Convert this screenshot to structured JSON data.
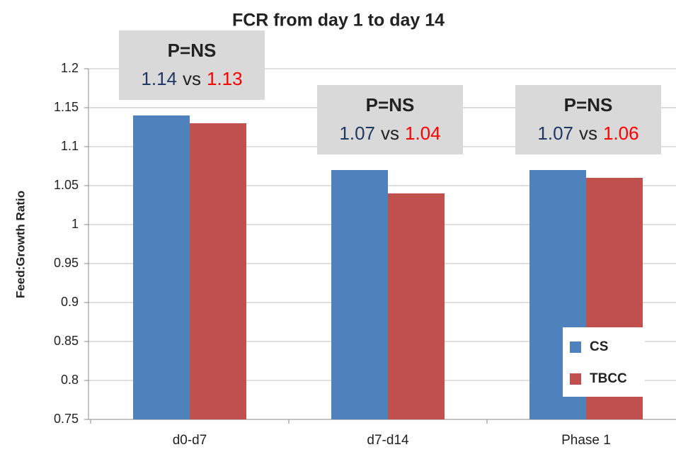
{
  "chart_data": {
    "type": "bar",
    "title": "FCR from day 1 to day 14",
    "y_label": "Feed:Growth Ratio",
    "categories": [
      "d0-d7",
      "d7-d14",
      "Phase 1"
    ],
    "series": [
      {
        "name": "CS",
        "color": "#4f81bd",
        "values": [
          1.14,
          1.07,
          1.07
        ]
      },
      {
        "name": "TBCC",
        "color": "#c0504d",
        "values": [
          1.13,
          1.04,
          1.06
        ]
      }
    ],
    "annotations": [
      {
        "text": "P=NS",
        "separator": "vs"
      },
      {
        "text": "P=NS",
        "separator": "vs"
      },
      {
        "text": "P=NS",
        "separator": "vs"
      }
    ],
    "ylim": [
      0.75,
      1.2
    ],
    "yticks": [
      0.75,
      0.8,
      0.85,
      0.9,
      0.95,
      1,
      1.05,
      1.1,
      1.15,
      1.2
    ],
    "grid": true,
    "legend": "lower right"
  }
}
